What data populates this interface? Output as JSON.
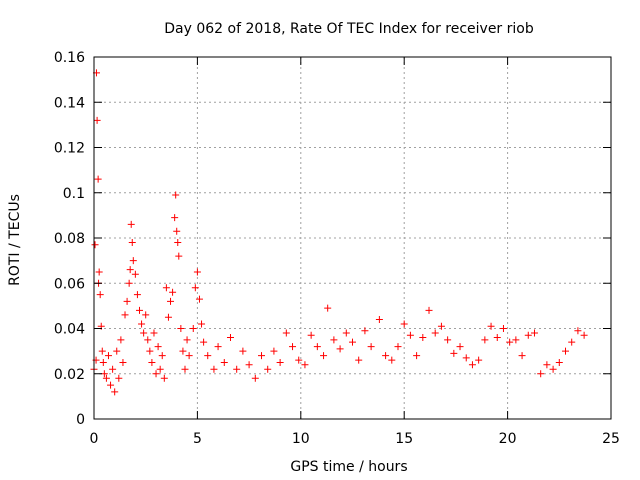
{
  "chart_data": {
    "type": "scatter",
    "title": "Day 062 of 2018, Rate Of TEC Index for receiver riob",
    "xlabel": "GPS time / hours",
    "ylabel": "ROTI / TECUs",
    "xlim": [
      0,
      25
    ],
    "ylim": [
      0,
      0.16
    ],
    "xticks": [
      0,
      5,
      10,
      15,
      20,
      25
    ],
    "xtick_labels": [
      "0",
      "5",
      "10",
      "15",
      "20",
      "25"
    ],
    "yticks": [
      0,
      0.02,
      0.04,
      0.06,
      0.08,
      0.1,
      0.12,
      0.14,
      0.16
    ],
    "ytick_labels": [
      "0",
      "0.02",
      "0.04",
      "0.06",
      "0.08",
      "0.1",
      "0.12",
      "0.14",
      "0.16"
    ],
    "grid": true,
    "marker": "+",
    "color": "#ff0000",
    "series": [
      {
        "name": "ROTI",
        "points": [
          [
            0.0,
            0.022
          ],
          [
            0.05,
            0.077
          ],
          [
            0.1,
            0.026
          ],
          [
            0.12,
            0.153
          ],
          [
            0.15,
            0.132
          ],
          [
            0.2,
            0.106
          ],
          [
            0.22,
            0.06
          ],
          [
            0.25,
            0.065
          ],
          [
            0.3,
            0.055
          ],
          [
            0.35,
            0.041
          ],
          [
            0.4,
            0.03
          ],
          [
            0.45,
            0.025
          ],
          [
            0.5,
            0.02
          ],
          [
            0.6,
            0.018
          ],
          [
            0.7,
            0.028
          ],
          [
            0.8,
            0.015
          ],
          [
            0.9,
            0.022
          ],
          [
            1.0,
            0.012
          ],
          [
            1.1,
            0.03
          ],
          [
            1.2,
            0.018
          ],
          [
            1.3,
            0.035
          ],
          [
            1.4,
            0.025
          ],
          [
            1.5,
            0.046
          ],
          [
            1.6,
            0.052
          ],
          [
            1.7,
            0.06
          ],
          [
            1.75,
            0.066
          ],
          [
            1.8,
            0.086
          ],
          [
            1.85,
            0.078
          ],
          [
            1.9,
            0.07
          ],
          [
            2.0,
            0.064
          ],
          [
            2.1,
            0.055
          ],
          [
            2.2,
            0.048
          ],
          [
            2.3,
            0.042
          ],
          [
            2.4,
            0.038
          ],
          [
            2.5,
            0.046
          ],
          [
            2.6,
            0.035
          ],
          [
            2.7,
            0.03
          ],
          [
            2.8,
            0.025
          ],
          [
            2.9,
            0.038
          ],
          [
            3.0,
            0.02
          ],
          [
            3.1,
            0.032
          ],
          [
            3.2,
            0.022
          ],
          [
            3.3,
            0.028
          ],
          [
            3.4,
            0.018
          ],
          [
            3.5,
            0.058
          ],
          [
            3.6,
            0.045
          ],
          [
            3.7,
            0.052
          ],
          [
            3.8,
            0.056
          ],
          [
            3.9,
            0.089
          ],
          [
            3.95,
            0.099
          ],
          [
            4.0,
            0.083
          ],
          [
            4.05,
            0.078
          ],
          [
            4.1,
            0.072
          ],
          [
            4.2,
            0.04
          ],
          [
            4.3,
            0.03
          ],
          [
            4.4,
            0.022
          ],
          [
            4.5,
            0.035
          ],
          [
            4.6,
            0.028
          ],
          [
            4.8,
            0.04
          ],
          [
            4.9,
            0.058
          ],
          [
            5.0,
            0.065
          ],
          [
            5.1,
            0.053
          ],
          [
            5.2,
            0.042
          ],
          [
            5.3,
            0.034
          ],
          [
            5.5,
            0.028
          ],
          [
            5.8,
            0.022
          ],
          [
            6.0,
            0.032
          ],
          [
            6.3,
            0.025
          ],
          [
            6.6,
            0.036
          ],
          [
            6.9,
            0.022
          ],
          [
            7.2,
            0.03
          ],
          [
            7.5,
            0.024
          ],
          [
            7.8,
            0.018
          ],
          [
            8.1,
            0.028
          ],
          [
            8.4,
            0.022
          ],
          [
            8.7,
            0.03
          ],
          [
            9.0,
            0.025
          ],
          [
            9.3,
            0.038
          ],
          [
            9.6,
            0.032
          ],
          [
            9.9,
            0.026
          ],
          [
            10.2,
            0.024
          ],
          [
            10.5,
            0.037
          ],
          [
            10.8,
            0.032
          ],
          [
            11.1,
            0.028
          ],
          [
            11.3,
            0.049
          ],
          [
            11.6,
            0.035
          ],
          [
            11.9,
            0.031
          ],
          [
            12.2,
            0.038
          ],
          [
            12.5,
            0.034
          ],
          [
            12.8,
            0.026
          ],
          [
            13.1,
            0.039
          ],
          [
            13.4,
            0.032
          ],
          [
            13.8,
            0.044
          ],
          [
            14.1,
            0.028
          ],
          [
            14.4,
            0.026
          ],
          [
            14.7,
            0.032
          ],
          [
            15.0,
            0.042
          ],
          [
            15.3,
            0.037
          ],
          [
            15.6,
            0.028
          ],
          [
            15.9,
            0.036
          ],
          [
            16.2,
            0.048
          ],
          [
            16.5,
            0.038
          ],
          [
            16.8,
            0.041
          ],
          [
            17.1,
            0.035
          ],
          [
            17.4,
            0.029
          ],
          [
            17.7,
            0.032
          ],
          [
            18.0,
            0.027
          ],
          [
            18.3,
            0.024
          ],
          [
            18.6,
            0.026
          ],
          [
            18.9,
            0.035
          ],
          [
            19.2,
            0.041
          ],
          [
            19.5,
            0.036
          ],
          [
            19.8,
            0.04
          ],
          [
            20.1,
            0.034
          ],
          [
            20.4,
            0.035
          ],
          [
            20.7,
            0.028
          ],
          [
            21.0,
            0.037
          ],
          [
            21.3,
            0.038
          ],
          [
            21.6,
            0.02
          ],
          [
            21.9,
            0.024
          ],
          [
            22.2,
            0.022
          ],
          [
            22.5,
            0.025
          ],
          [
            22.8,
            0.03
          ],
          [
            23.1,
            0.034
          ],
          [
            23.4,
            0.039
          ],
          [
            23.7,
            0.037
          ]
        ]
      }
    ]
  }
}
